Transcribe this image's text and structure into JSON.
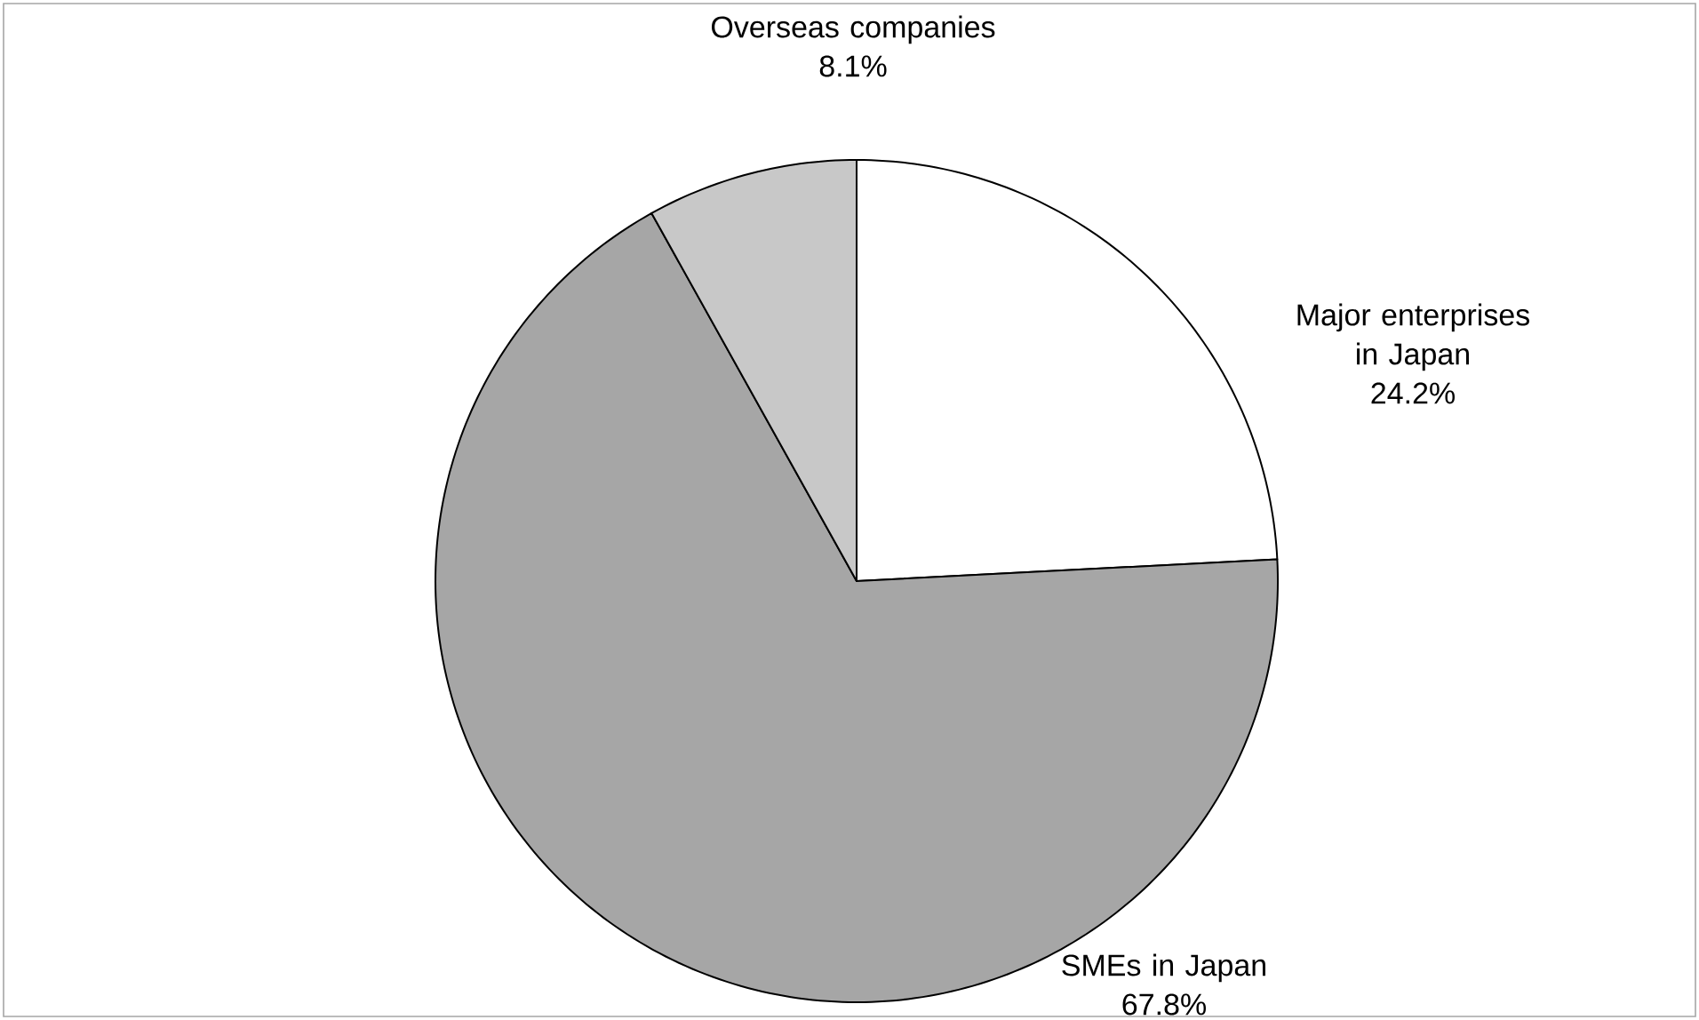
{
  "chart_data": {
    "type": "pie",
    "categories": [
      "Major enterprises in Japan",
      "SMEs in Japan",
      "Overseas companies"
    ],
    "values": [
      24.2,
      67.8,
      8.1
    ],
    "value_labels": [
      "24.2%",
      "67.8%",
      "8.1%"
    ],
    "colors": [
      "#ffffff",
      "#a6a6a6",
      "#c8c8c8"
    ]
  }
}
